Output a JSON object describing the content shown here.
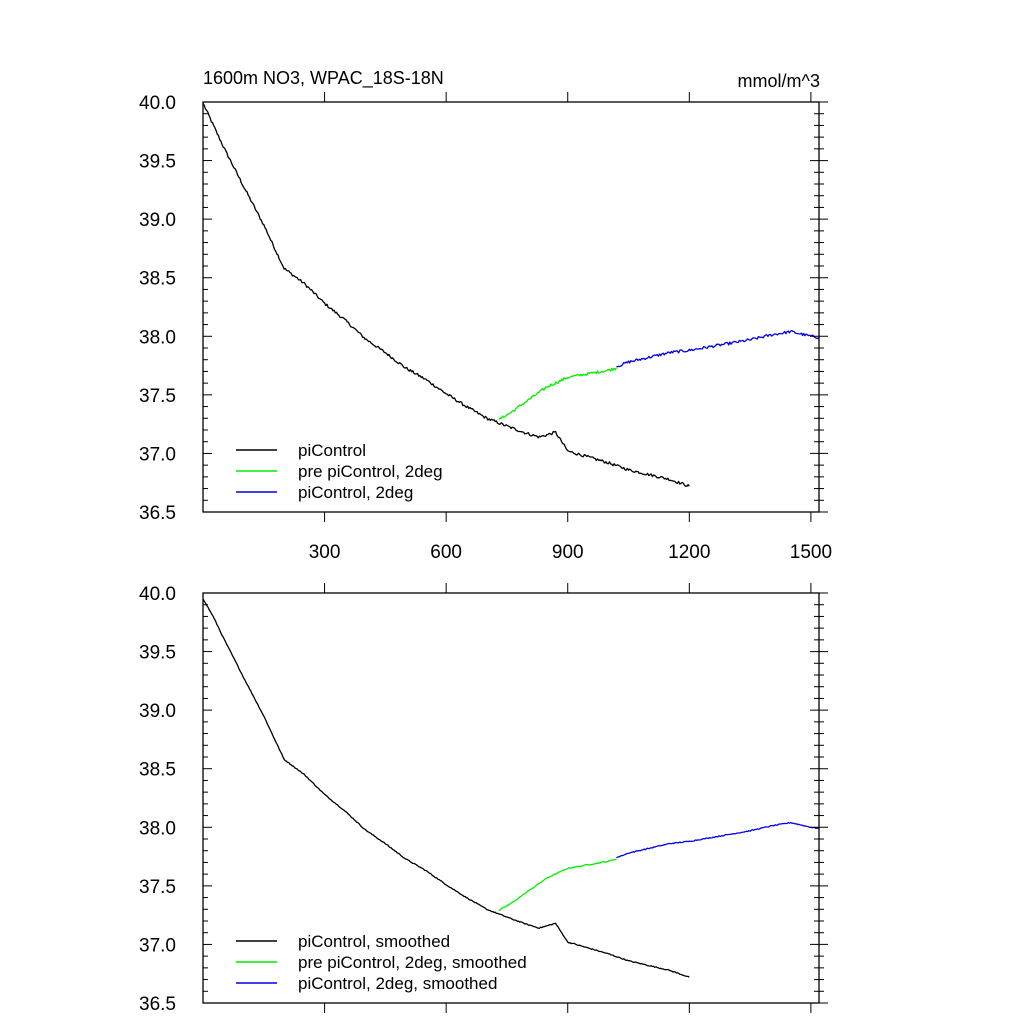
{
  "chart_data": [
    {
      "type": "line",
      "title": "1600m NO3, WPAC_18S-18N",
      "units": "mmol/m^3",
      "xlabel": "",
      "ylabel": "",
      "xlim": [
        0,
        1520
      ],
      "ylim": [
        36.5,
        40.0
      ],
      "xticks": [
        300,
        600,
        900,
        1200,
        1500
      ],
      "xtick_labels": [
        "300",
        "600",
        "900",
        "1200",
        "1500"
      ],
      "yticks": [
        36.5,
        37.0,
        37.5,
        38.0,
        38.5,
        39.0,
        39.5,
        40.0
      ],
      "ytick_labels": [
        "36.5",
        "37.0",
        "37.5",
        "38.0",
        "38.5",
        "39.0",
        "39.5",
        "40.0"
      ],
      "grid": false,
      "legend_position": "bottom-left",
      "series": [
        {
          "name": "piControl",
          "color": "#000000",
          "noise": 0.012,
          "x": [
            0,
            50,
            100,
            150,
            200,
            250,
            300,
            350,
            400,
            450,
            500,
            550,
            600,
            650,
            700,
            730,
            760,
            800,
            830,
            870,
            900,
            950,
            1000,
            1050,
            1100,
            1150,
            1200
          ],
          "y": [
            39.99,
            39.62,
            39.28,
            38.95,
            38.58,
            38.45,
            38.28,
            38.14,
            37.98,
            37.86,
            37.73,
            37.63,
            37.51,
            37.4,
            37.3,
            37.26,
            37.22,
            37.17,
            37.14,
            37.18,
            37.02,
            36.97,
            36.92,
            36.86,
            36.82,
            36.78,
            36.72
          ]
        },
        {
          "name": "pre piControl, 2deg",
          "color": "#00ee00",
          "noise": 0.012,
          "x": [
            730,
            760,
            800,
            850,
            900,
            950,
            1000,
            1020
          ],
          "y": [
            37.29,
            37.35,
            37.45,
            37.57,
            37.65,
            37.68,
            37.71,
            37.73
          ]
        },
        {
          "name": "piControl, 2deg",
          "color": "#0000ee",
          "noise": 0.012,
          "x": [
            1020,
            1050,
            1100,
            1150,
            1200,
            1250,
            1300,
            1350,
            1400,
            1450,
            1500,
            1520
          ],
          "y": [
            37.74,
            37.78,
            37.82,
            37.86,
            37.88,
            37.91,
            37.94,
            37.97,
            38.01,
            38.04,
            38.0,
            37.99
          ]
        }
      ]
    },
    {
      "type": "line",
      "title": "",
      "xlabel": "",
      "ylabel": "",
      "xlim": [
        0,
        1520
      ],
      "ylim": [
        36.5,
        40.0
      ],
      "xticks": [
        300,
        600,
        900,
        1200,
        1500
      ],
      "yticks": [
        36.5,
        37.0,
        37.5,
        38.0,
        38.5,
        39.0,
        39.5,
        40.0
      ],
      "ytick_labels": [
        "36.5",
        "37.0",
        "37.5",
        "38.0",
        "38.5",
        "39.0",
        "39.5",
        "40.0"
      ],
      "grid": false,
      "legend_position": "bottom-left",
      "series": [
        {
          "name": "piControl, smoothed",
          "color": "#000000",
          "noise": 0.004,
          "x": [
            0,
            25,
            50,
            100,
            150,
            200,
            250,
            300,
            350,
            400,
            450,
            500,
            550,
            600,
            650,
            700,
            730,
            760,
            800,
            830,
            870,
            900,
            950,
            1000,
            1050,
            1100,
            1150,
            1200
          ],
          "y": [
            39.95,
            39.8,
            39.62,
            39.28,
            38.95,
            38.58,
            38.45,
            38.28,
            38.14,
            37.98,
            37.86,
            37.73,
            37.63,
            37.51,
            37.4,
            37.3,
            37.26,
            37.22,
            37.17,
            37.14,
            37.18,
            37.02,
            36.97,
            36.92,
            36.86,
            36.82,
            36.78,
            36.72
          ]
        },
        {
          "name": "pre piControl, 2deg, smoothed",
          "color": "#00ee00",
          "noise": 0.004,
          "x": [
            730,
            760,
            800,
            850,
            900,
            950,
            1000,
            1020
          ],
          "y": [
            37.29,
            37.35,
            37.45,
            37.57,
            37.65,
            37.68,
            37.71,
            37.73
          ]
        },
        {
          "name": "piControl, 2deg, smoothed",
          "color": "#0000ee",
          "noise": 0.004,
          "x": [
            1020,
            1050,
            1100,
            1150,
            1200,
            1250,
            1300,
            1350,
            1400,
            1450,
            1500,
            1520
          ],
          "y": [
            37.74,
            37.78,
            37.82,
            37.86,
            37.88,
            37.91,
            37.94,
            37.97,
            38.01,
            38.04,
            38.0,
            37.99
          ]
        }
      ]
    }
  ]
}
